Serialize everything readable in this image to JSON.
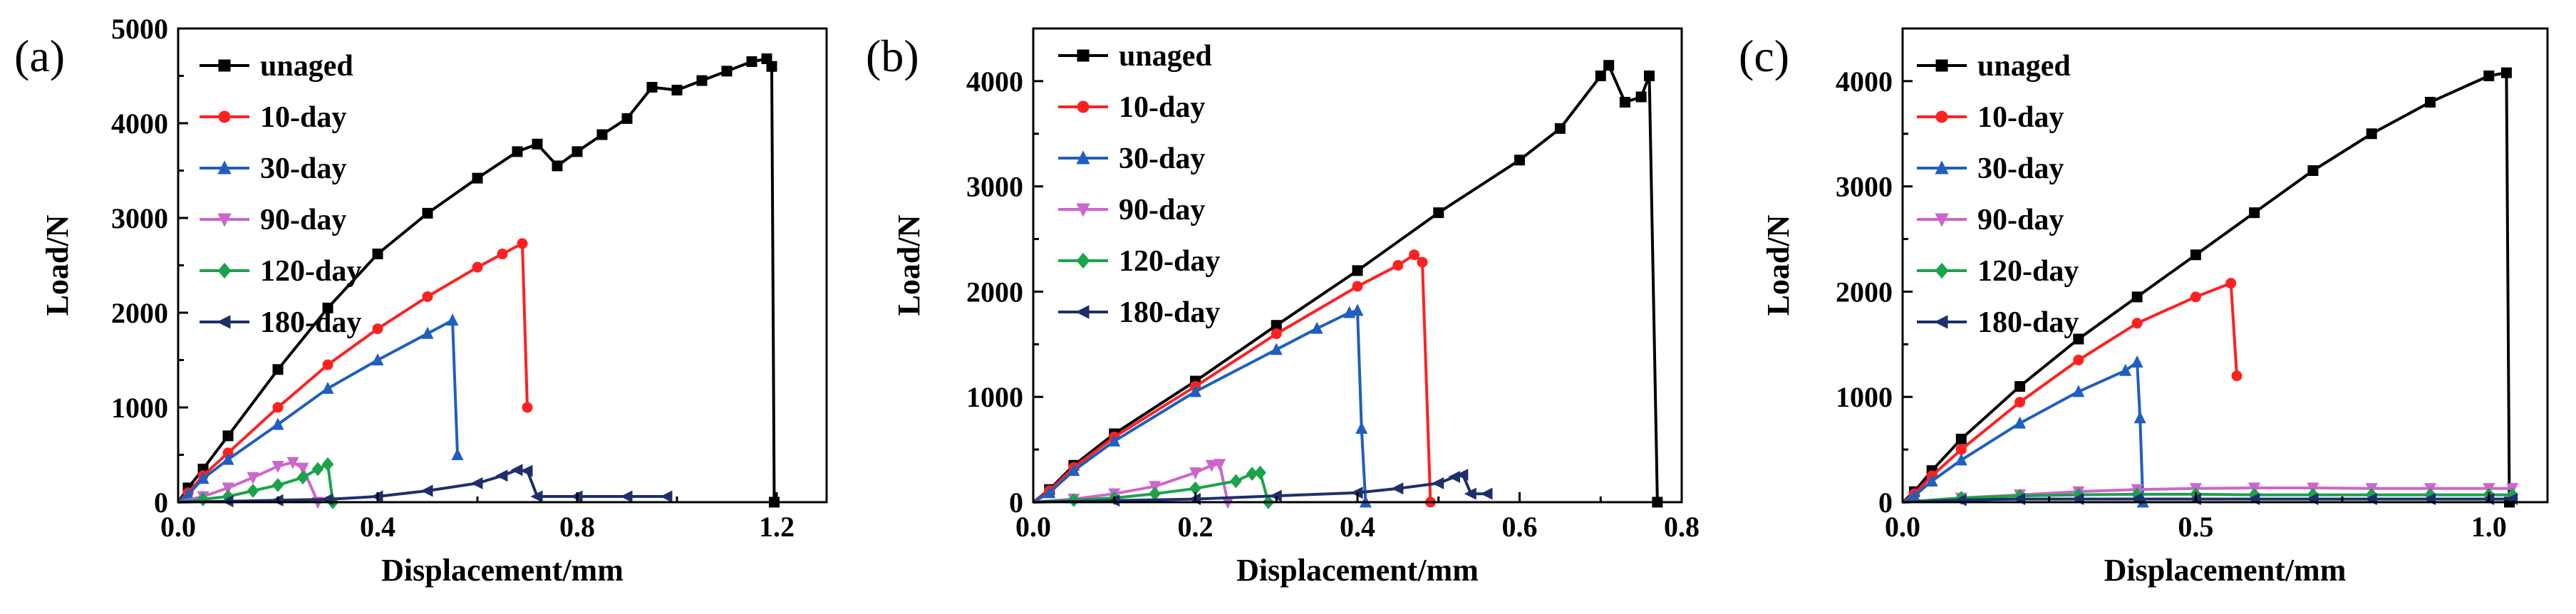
{
  "figure": {
    "panel_count": 3
  },
  "chart_data": [
    {
      "panel": "(a)",
      "type": "line",
      "xlabel": "Displacement/mm",
      "ylabel": "Load/N",
      "xlim": [
        0,
        1.3
      ],
      "ylim": [
        0,
        5000
      ],
      "xticks": [
        0.0,
        0.4,
        0.8,
        1.2
      ],
      "xtick_labels": [
        "0.0",
        "0.4",
        "0.8",
        "1.2"
      ],
      "yticks": [
        0,
        1000,
        2000,
        3000,
        4000,
        5000
      ],
      "ytick_labels": [
        "0",
        "1000",
        "2000",
        "3000",
        "4000",
        "5000"
      ],
      "legend_location": "top-left",
      "series": [
        {
          "name": "unaged",
          "color": "#000000",
          "marker": "square",
          "x": [
            0,
            0.02,
            0.05,
            0.1,
            0.2,
            0.3,
            0.4,
            0.5,
            0.6,
            0.68,
            0.72,
            0.76,
            0.8,
            0.85,
            0.9,
            0.95,
            1.0,
            1.05,
            1.1,
            1.15,
            1.18,
            1.19,
            1.195
          ],
          "y": [
            0,
            150,
            350,
            700,
            1400,
            2050,
            2620,
            3050,
            3420,
            3700,
            3780,
            3550,
            3700,
            3880,
            4050,
            4380,
            4350,
            4450,
            4550,
            4650,
            4680,
            4600,
            0
          ]
        },
        {
          "name": "10-day",
          "color": "#ff2020",
          "marker": "circle",
          "x": [
            0,
            0.02,
            0.05,
            0.1,
            0.2,
            0.3,
            0.4,
            0.5,
            0.6,
            0.65,
            0.69,
            0.7
          ],
          "y": [
            0,
            100,
            280,
            520,
            1000,
            1450,
            1830,
            2170,
            2480,
            2620,
            2730,
            1000
          ]
        },
        {
          "name": "30-day",
          "color": "#1f5fbf",
          "marker": "triangle-up",
          "x": [
            0,
            0.02,
            0.05,
            0.1,
            0.2,
            0.3,
            0.4,
            0.5,
            0.55,
            0.56
          ],
          "y": [
            0,
            80,
            250,
            450,
            820,
            1200,
            1500,
            1780,
            1920,
            500
          ]
        },
        {
          "name": "90-day",
          "color": "#cc66cc",
          "marker": "triangle-down",
          "x": [
            0,
            0.05,
            0.1,
            0.15,
            0.2,
            0.23,
            0.25,
            0.28
          ],
          "y": [
            0,
            60,
            150,
            260,
            380,
            420,
            360,
            0
          ]
        },
        {
          "name": "120-day",
          "color": "#1aa34a",
          "marker": "diamond",
          "x": [
            0,
            0.05,
            0.1,
            0.15,
            0.2,
            0.25,
            0.28,
            0.3,
            0.31
          ],
          "y": [
            0,
            30,
            60,
            120,
            180,
            260,
            350,
            400,
            0
          ]
        },
        {
          "name": "180-day",
          "color": "#1f2f6b",
          "marker": "triangle-left",
          "x": [
            0,
            0.1,
            0.2,
            0.3,
            0.4,
            0.5,
            0.6,
            0.65,
            0.68,
            0.7,
            0.72,
            0.8,
            0.9,
            0.98
          ],
          "y": [
            0,
            10,
            20,
            30,
            60,
            120,
            200,
            280,
            340,
            330,
            60,
            60,
            60,
            60
          ]
        }
      ]
    },
    {
      "panel": "(b)",
      "type": "line",
      "xlabel": "Displacement/mm",
      "ylabel": "Load/N",
      "xlim": [
        0,
        0.8
      ],
      "ylim": [
        0,
        4500
      ],
      "xticks": [
        0.0,
        0.2,
        0.4,
        0.6,
        0.8
      ],
      "xtick_labels": [
        "0.0",
        "0.2",
        "0.4",
        "0.6",
        "0.8"
      ],
      "yticks": [
        0,
        1000,
        2000,
        3000,
        4000
      ],
      "ytick_labels": [
        "0",
        "1000",
        "2000",
        "3000",
        "4000"
      ],
      "legend_location": "top-left",
      "series": [
        {
          "name": "unaged",
          "color": "#000000",
          "marker": "square",
          "x": [
            0,
            0.02,
            0.05,
            0.1,
            0.2,
            0.3,
            0.4,
            0.5,
            0.6,
            0.65,
            0.7,
            0.71,
            0.73,
            0.75,
            0.76,
            0.77
          ],
          "y": [
            0,
            120,
            350,
            650,
            1150,
            1680,
            2200,
            2750,
            3250,
            3550,
            4050,
            4150,
            3800,
            3850,
            4050,
            0
          ]
        },
        {
          "name": "10-day",
          "color": "#ff2020",
          "marker": "circle",
          "x": [
            0,
            0.02,
            0.05,
            0.1,
            0.2,
            0.3,
            0.4,
            0.45,
            0.47,
            0.48,
            0.49
          ],
          "y": [
            0,
            110,
            330,
            620,
            1100,
            1600,
            2050,
            2250,
            2350,
            2280,
            0
          ]
        },
        {
          "name": "30-day",
          "color": "#1f5fbf",
          "marker": "triangle-up",
          "x": [
            0,
            0.02,
            0.05,
            0.1,
            0.2,
            0.3,
            0.35,
            0.39,
            0.4,
            0.405,
            0.41
          ],
          "y": [
            0,
            90,
            300,
            580,
            1050,
            1450,
            1650,
            1800,
            1820,
            700,
            0
          ]
        },
        {
          "name": "90-day",
          "color": "#cc66cc",
          "marker": "triangle-down",
          "x": [
            0,
            0.05,
            0.1,
            0.15,
            0.2,
            0.22,
            0.23,
            0.24
          ],
          "y": [
            0,
            30,
            80,
            150,
            280,
            350,
            360,
            0
          ]
        },
        {
          "name": "120-day",
          "color": "#1aa34a",
          "marker": "diamond",
          "x": [
            0,
            0.05,
            0.1,
            0.15,
            0.2,
            0.25,
            0.27,
            0.28,
            0.29
          ],
          "y": [
            0,
            20,
            40,
            80,
            130,
            200,
            270,
            280,
            0
          ]
        },
        {
          "name": "180-day",
          "color": "#1f2f6b",
          "marker": "triangle-left",
          "x": [
            0,
            0.1,
            0.2,
            0.3,
            0.4,
            0.45,
            0.5,
            0.52,
            0.53,
            0.54,
            0.56
          ],
          "y": [
            0,
            15,
            30,
            60,
            90,
            130,
            180,
            240,
            260,
            80,
            80
          ]
        }
      ]
    },
    {
      "panel": "(c)",
      "type": "line",
      "xlabel": "Displacement/mm",
      "ylabel": "Load/N",
      "xlim": [
        0,
        1.1
      ],
      "ylim": [
        0,
        4500
      ],
      "xticks": [
        0.0,
        0.5,
        1.0
      ],
      "xtick_labels": [
        "0.0",
        "0.5",
        "1.0"
      ],
      "yticks": [
        0,
        1000,
        2000,
        3000,
        4000
      ],
      "ytick_labels": [
        "0",
        "1000",
        "2000",
        "3000",
        "4000"
      ],
      "legend_location": "top-left",
      "series": [
        {
          "name": "unaged",
          "color": "#000000",
          "marker": "square",
          "x": [
            0,
            0.02,
            0.05,
            0.1,
            0.2,
            0.3,
            0.4,
            0.5,
            0.6,
            0.7,
            0.8,
            0.9,
            1.0,
            1.03,
            1.035
          ],
          "y": [
            0,
            100,
            300,
            600,
            1100,
            1550,
            1950,
            2350,
            2750,
            3150,
            3500,
            3800,
            4050,
            4080,
            0
          ]
        },
        {
          "name": "10-day",
          "color": "#ff2020",
          "marker": "circle",
          "x": [
            0,
            0.02,
            0.05,
            0.1,
            0.2,
            0.3,
            0.4,
            0.5,
            0.56,
            0.57
          ],
          "y": [
            0,
            80,
            250,
            500,
            950,
            1350,
            1700,
            1950,
            2080,
            1200
          ]
        },
        {
          "name": "30-day",
          "color": "#1f5fbf",
          "marker": "triangle-up",
          "x": [
            0,
            0.02,
            0.05,
            0.1,
            0.2,
            0.3,
            0.38,
            0.4,
            0.405,
            0.41
          ],
          "y": [
            0,
            60,
            200,
            400,
            750,
            1050,
            1250,
            1330,
            800,
            0
          ]
        },
        {
          "name": "90-day",
          "color": "#cc66cc",
          "marker": "triangle-down",
          "x": [
            0,
            0.1,
            0.2,
            0.3,
            0.4,
            0.5,
            0.6,
            0.7,
            0.8,
            0.9,
            1.0,
            1.04
          ],
          "y": [
            0,
            40,
            70,
            100,
            120,
            130,
            135,
            135,
            130,
            130,
            130,
            130
          ]
        },
        {
          "name": "120-day",
          "color": "#1aa34a",
          "marker": "diamond",
          "x": [
            0,
            0.1,
            0.2,
            0.3,
            0.4,
            0.5,
            0.6,
            0.7,
            0.8,
            0.9,
            1.0,
            1.04
          ],
          "y": [
            0,
            40,
            60,
            70,
            75,
            75,
            70,
            70,
            70,
            70,
            70,
            70
          ]
        },
        {
          "name": "180-day",
          "color": "#1f2f6b",
          "marker": "triangle-left",
          "x": [
            0,
            0.1,
            0.2,
            0.3,
            0.4,
            0.5,
            0.6,
            0.7,
            0.8,
            0.9,
            1.0,
            1.04
          ],
          "y": [
            0,
            20,
            30,
            30,
            30,
            30,
            30,
            30,
            30,
            30,
            30,
            30
          ]
        }
      ]
    }
  ]
}
